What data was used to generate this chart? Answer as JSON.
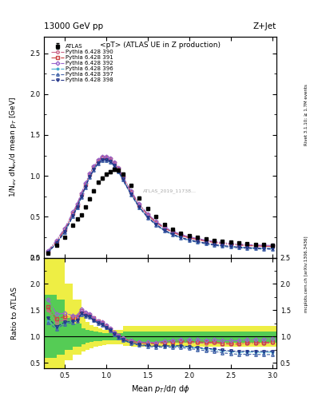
{
  "title_top": "13000 GeV pp",
  "title_right": "Z+Jet",
  "plot_title": "<pT> (ATLAS UE in Z production)",
  "ylabel_main": "1/N$_{ev}$ dN$_{ev}$/d mean p$_T$ [GeV]",
  "ylabel_ratio": "Ratio to ATLAS",
  "xlabel": "Mean p$_{T}$/dη dφ",
  "right_label_main": "Rivet 3.1.10; ≥ 1.7M events",
  "right_label_ratio": "mcplots.cern.ch [arXiv:1306.3436]",
  "watermark": "ATLAS_2019_11738...",
  "atlas_data_x": [
    0.3,
    0.4,
    0.5,
    0.6,
    0.65,
    0.7,
    0.75,
    0.8,
    0.85,
    0.9,
    0.95,
    1.0,
    1.05,
    1.1,
    1.15,
    1.2,
    1.3,
    1.4,
    1.5,
    1.6,
    1.7,
    1.8,
    1.9,
    2.0,
    2.1,
    2.2,
    2.3,
    2.4,
    2.5,
    2.6,
    2.7,
    2.8,
    2.9,
    3.0
  ],
  "atlas_data_y": [
    0.05,
    0.15,
    0.25,
    0.4,
    0.47,
    0.52,
    0.62,
    0.72,
    0.82,
    0.92,
    0.97,
    1.02,
    1.05,
    1.08,
    1.07,
    1.02,
    0.88,
    0.73,
    0.6,
    0.5,
    0.41,
    0.35,
    0.3,
    0.27,
    0.25,
    0.23,
    0.21,
    0.2,
    0.19,
    0.18,
    0.17,
    0.165,
    0.16,
    0.155
  ],
  "atlas_data_yerr": [
    0.005,
    0.008,
    0.01,
    0.012,
    0.013,
    0.013,
    0.014,
    0.015,
    0.016,
    0.017,
    0.018,
    0.018,
    0.018,
    0.02,
    0.02,
    0.02,
    0.018,
    0.016,
    0.014,
    0.012,
    0.01,
    0.009,
    0.008,
    0.008,
    0.007,
    0.007,
    0.006,
    0.006,
    0.006,
    0.005,
    0.005,
    0.005,
    0.005,
    0.005
  ],
  "mc_x": [
    0.3,
    0.4,
    0.5,
    0.6,
    0.65,
    0.7,
    0.75,
    0.8,
    0.85,
    0.9,
    0.95,
    1.0,
    1.05,
    1.1,
    1.15,
    1.2,
    1.3,
    1.4,
    1.5,
    1.6,
    1.7,
    1.8,
    1.9,
    2.0,
    2.1,
    2.2,
    2.3,
    2.4,
    2.5,
    2.6,
    2.7,
    2.8,
    2.9,
    3.0
  ],
  "mc390_y": [
    0.075,
    0.19,
    0.33,
    0.53,
    0.63,
    0.76,
    0.88,
    1.01,
    1.1,
    1.18,
    1.22,
    1.22,
    1.2,
    1.15,
    1.08,
    0.98,
    0.8,
    0.64,
    0.52,
    0.43,
    0.36,
    0.31,
    0.27,
    0.24,
    0.22,
    0.2,
    0.185,
    0.172,
    0.162,
    0.153,
    0.147,
    0.143,
    0.139,
    0.136
  ],
  "mc391_y": [
    0.078,
    0.2,
    0.345,
    0.545,
    0.645,
    0.775,
    0.895,
    1.02,
    1.105,
    1.185,
    1.225,
    1.225,
    1.205,
    1.155,
    1.085,
    0.985,
    0.805,
    0.645,
    0.525,
    0.435,
    0.365,
    0.315,
    0.275,
    0.245,
    0.225,
    0.205,
    0.188,
    0.175,
    0.165,
    0.156,
    0.15,
    0.146,
    0.142,
    0.139
  ],
  "mc392_y": [
    0.085,
    0.215,
    0.36,
    0.56,
    0.66,
    0.79,
    0.91,
    1.035,
    1.115,
    1.195,
    1.235,
    1.235,
    1.215,
    1.165,
    1.095,
    0.995,
    0.815,
    0.655,
    0.535,
    0.445,
    0.375,
    0.325,
    0.285,
    0.255,
    0.235,
    0.215,
    0.198,
    0.185,
    0.175,
    0.166,
    0.16,
    0.156,
    0.152,
    0.149
  ],
  "mc396_y": [
    0.065,
    0.175,
    0.315,
    0.515,
    0.615,
    0.745,
    0.865,
    0.99,
    1.075,
    1.155,
    1.195,
    1.195,
    1.175,
    1.125,
    1.055,
    0.955,
    0.775,
    0.615,
    0.495,
    0.405,
    0.335,
    0.285,
    0.245,
    0.215,
    0.195,
    0.175,
    0.158,
    0.145,
    0.135,
    0.126,
    0.12,
    0.116,
    0.112,
    0.109
  ],
  "mc397_y": [
    0.063,
    0.172,
    0.31,
    0.508,
    0.608,
    0.738,
    0.858,
    0.983,
    1.068,
    1.148,
    1.188,
    1.188,
    1.168,
    1.118,
    1.048,
    0.948,
    0.768,
    0.608,
    0.488,
    0.398,
    0.328,
    0.278,
    0.238,
    0.208,
    0.188,
    0.168,
    0.151,
    0.138,
    0.128,
    0.119,
    0.113,
    0.109,
    0.105,
    0.102
  ],
  "mc398_y": [
    0.068,
    0.178,
    0.318,
    0.518,
    0.618,
    0.748,
    0.868,
    0.993,
    1.078,
    1.158,
    1.198,
    1.198,
    1.178,
    1.128,
    1.058,
    0.958,
    0.778,
    0.618,
    0.498,
    0.408,
    0.338,
    0.288,
    0.248,
    0.218,
    0.198,
    0.178,
    0.161,
    0.148,
    0.138,
    0.129,
    0.123,
    0.119,
    0.115,
    0.112
  ],
  "band_yellow_lo": [
    0.4,
    0.4,
    0.55,
    0.65,
    0.68,
    0.72,
    0.75,
    0.78,
    0.8,
    0.82,
    0.84,
    0.85,
    0.85,
    0.85,
    0.85,
    0.85,
    0.82,
    0.8,
    0.8,
    0.8,
    0.8,
    0.8,
    0.8,
    0.8,
    0.8,
    0.8,
    0.8,
    0.8,
    0.8,
    0.8,
    0.8,
    0.8,
    0.8,
    0.8
  ],
  "band_yellow_hi": [
    2.5,
    2.5,
    2.0,
    1.7,
    1.5,
    1.38,
    1.28,
    1.22,
    1.18,
    1.15,
    1.13,
    1.12,
    1.12,
    1.12,
    1.12,
    1.13,
    1.2,
    1.2,
    1.2,
    1.2,
    1.2,
    1.2,
    1.2,
    1.2,
    1.2,
    1.2,
    1.2,
    1.2,
    1.2,
    1.2,
    1.2,
    1.2,
    1.2,
    1.2
  ],
  "band_green_lo": [
    0.6,
    0.65,
    0.75,
    0.8,
    0.83,
    0.86,
    0.88,
    0.9,
    0.91,
    0.92,
    0.93,
    0.93,
    0.93,
    0.93,
    0.93,
    0.93,
    0.9,
    0.88,
    0.88,
    0.88,
    0.88,
    0.88,
    0.88,
    0.88,
    0.88,
    0.88,
    0.88,
    0.88,
    0.88,
    0.88,
    0.88,
    0.88,
    0.88,
    0.88
  ],
  "band_green_hi": [
    1.8,
    1.7,
    1.35,
    1.25,
    1.2,
    1.16,
    1.13,
    1.11,
    1.09,
    1.08,
    1.07,
    1.07,
    1.07,
    1.07,
    1.07,
    1.07,
    1.1,
    1.1,
    1.1,
    1.1,
    1.1,
    1.1,
    1.1,
    1.1,
    1.1,
    1.1,
    1.1,
    1.1,
    1.1,
    1.1,
    1.1,
    1.1,
    1.1,
    1.1
  ],
  "band_x_centers": [
    0.3,
    0.4,
    0.5,
    0.6,
    0.65,
    0.7,
    0.75,
    0.8,
    0.85,
    0.9,
    0.95,
    1.0,
    1.05,
    1.1,
    1.15,
    1.2,
    1.3,
    1.4,
    1.5,
    1.6,
    1.7,
    1.8,
    1.9,
    2.0,
    2.1,
    2.2,
    2.3,
    2.4,
    2.5,
    2.6,
    2.7,
    2.8,
    2.9,
    3.0
  ],
  "band_x_widths": [
    0.1,
    0.1,
    0.1,
    0.1,
    0.05,
    0.05,
    0.05,
    0.05,
    0.05,
    0.05,
    0.05,
    0.05,
    0.05,
    0.05,
    0.05,
    0.05,
    0.1,
    0.1,
    0.1,
    0.1,
    0.1,
    0.1,
    0.1,
    0.1,
    0.1,
    0.1,
    0.1,
    0.1,
    0.1,
    0.1,
    0.1,
    0.1,
    0.1,
    0.1
  ],
  "colors": {
    "mc390": "#cc6688",
    "mc391": "#cc4444",
    "mc392": "#9966cc",
    "mc396": "#44aacc",
    "mc397": "#4466aa",
    "mc398": "#223388"
  },
  "markers": {
    "mc390": "o",
    "mc391": "s",
    "mc392": "D",
    "mc396": "*",
    "mc397": "^",
    "mc398": "v"
  },
  "linestyles": {
    "mc390": "-.",
    "mc391": "-.",
    "mc392": "-.",
    "mc396": "-.",
    "mc397": "--",
    "mc398": "--"
  },
  "main_ylim": [
    0.0,
    2.7
  ],
  "main_yticks": [
    0.0,
    0.5,
    1.0,
    1.5,
    2.0,
    2.5
  ],
  "ratio_ylim": [
    0.4,
    2.5
  ],
  "ratio_yticks": [
    0.5,
    1.0,
    1.5,
    2.0,
    2.5
  ],
  "xlim": [
    0.25,
    3.05
  ],
  "xticks": [
    0.5,
    1.0,
    1.5,
    2.0,
    2.5,
    3.0
  ],
  "background_color": "#ffffff",
  "green_band_color": "#55cc55",
  "yellow_band_color": "#eeee44"
}
